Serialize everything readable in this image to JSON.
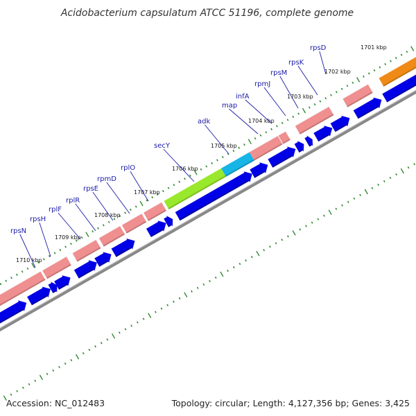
{
  "title": "Acidobacterium capsulatum ATCC 51196, complete genome",
  "footer": {
    "accession": "Accession: NC_012483",
    "summary": "Topology: circular; Length: 4,127,356 bp; Genes: 3,425"
  },
  "colors": {
    "forward_gene_strand": "#ef8f8f",
    "forward_gene_highlight_1": "#99e82c",
    "forward_gene_highlight_2": "#17b4e6",
    "forward_gene_highlight_3": "#f08a17",
    "cds_arrows": "#0000e6",
    "backbone": "#888888",
    "tick_dots": "#2f8a2f",
    "gene_labels": "#1a1aa6"
  },
  "kbp_labels": [
    "1701 kbp",
    "1702 kbp",
    "1703 kbp",
    "1704 kbp",
    "1705 kbp",
    "1706 kbp",
    "1707 kbp",
    "1708 kbp",
    "1709 kbp",
    "1710 kbp"
  ],
  "gene_labels": [
    "rpsD",
    "rpsK",
    "rpsM",
    "rpmJ",
    "infA",
    "map",
    "adk",
    "secY",
    "rplO",
    "rpmD",
    "rpsE",
    "rplR",
    "rplF",
    "rpsH",
    "rpsN"
  ]
}
